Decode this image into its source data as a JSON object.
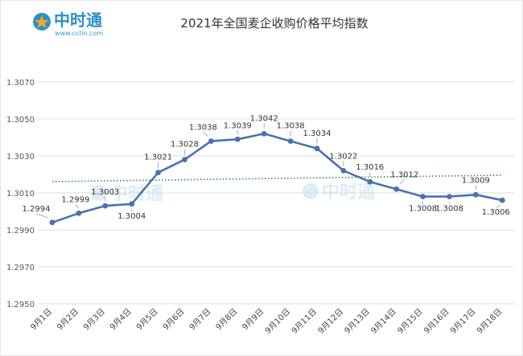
{
  "logo": {
    "name": "中时通",
    "url": "www.cctin.com"
  },
  "chart_data": {
    "type": "line",
    "title": "2021年全国麦企收购价格平均指数",
    "categories": [
      "9月1日",
      "9月2日",
      "9月3日",
      "9月4日",
      "9月5日",
      "9月6日",
      "9月7日",
      "9月8日",
      "9月9日",
      "9月10日",
      "9月11日",
      "9月12日",
      "9月13日",
      "9月14日",
      "9月15日",
      "9月16日",
      "9月17日",
      "9月18日"
    ],
    "values": [
      1.2994,
      1.2999,
      1.3003,
      1.3004,
      1.3021,
      1.3028,
      1.3038,
      1.3039,
      1.3042,
      1.3038,
      1.3034,
      1.3022,
      1.3016,
      1.3012,
      1.3008,
      1.3008,
      1.3009,
      1.3006
    ],
    "data_labels": [
      "1.2994",
      "1.2999",
      "1.3003",
      "1.3004",
      "1.3021",
      "1.3028",
      "1.3038",
      "1.3039",
      "1.3042",
      "1.3038",
      "1.3034",
      "1.3022",
      "1.3016",
      "1.3012",
      "1.3008",
      "1.3008",
      "1.3009",
      "1.3006"
    ],
    "yticks": [
      "1.3070",
      "1.3050",
      "1.3030",
      "1.3010",
      "1.2990",
      "1.2970",
      "1.2950"
    ],
    "ylim": [
      1.295,
      1.307
    ],
    "trendline": {
      "style": "dotted",
      "color": "#2e8b57"
    },
    "series_color": "#4a72b0",
    "grid": true,
    "legend": "none"
  }
}
